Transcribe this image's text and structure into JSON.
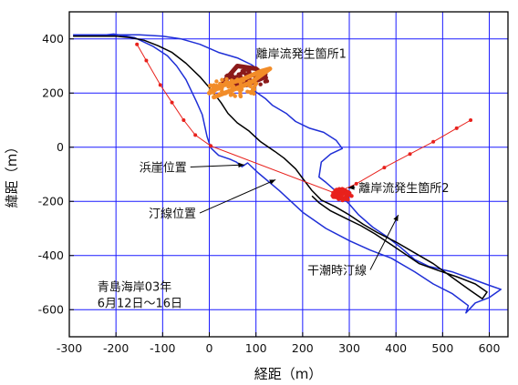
{
  "chart_data": {
    "type": "scatter",
    "title": "",
    "xlabel": "経距（m）",
    "ylabel": "緯距（m）",
    "xlim": [
      -300,
      640
    ],
    "ylim": [
      -700,
      500
    ],
    "x_ticks": [
      -300,
      -200,
      -100,
      0,
      100,
      200,
      300,
      400,
      500,
      600
    ],
    "y_ticks": [
      400,
      200,
      0,
      -200,
      -400,
      -600
    ],
    "grid": true,
    "colors": {
      "grid": "#1a1aff",
      "cliff": "#1f2fd6",
      "shoreline": "#000000",
      "transect": "#e8211c",
      "rip1_a": "#8b1a1a",
      "rip1_b": "#f28c28",
      "rip2": "#e8211c"
    },
    "series": [
      {
        "key": "cliff",
        "kind": "line",
        "points": [
          [
            -292,
            415
          ],
          [
            -220,
            415
          ],
          [
            -205,
            418
          ],
          [
            -160,
            405
          ],
          [
            -120,
            372
          ],
          [
            -90,
            338
          ],
          [
            -70,
            300
          ],
          [
            -50,
            250
          ],
          [
            -28,
            170
          ],
          [
            -15,
            120
          ],
          [
            -5,
            40
          ],
          [
            3,
            -2
          ],
          [
            20,
            -30
          ],
          [
            45,
            -45
          ],
          [
            58,
            -55
          ],
          [
            70,
            -72
          ],
          [
            82,
            -58
          ],
          [
            105,
            -95
          ],
          [
            150,
            -160
          ],
          [
            200,
            -240
          ],
          [
            250,
            -300
          ],
          [
            300,
            -345
          ],
          [
            345,
            -380
          ],
          [
            390,
            -410
          ],
          [
            440,
            -460
          ],
          [
            480,
            -505
          ],
          [
            520,
            -540
          ],
          [
            555,
            -585
          ],
          [
            550,
            -612
          ],
          [
            570,
            -575
          ],
          [
            600,
            -555
          ],
          [
            625,
            -525
          ],
          [
            600,
            -510
          ],
          [
            560,
            -485
          ],
          [
            520,
            -460
          ],
          [
            470,
            -440
          ],
          [
            440,
            -415
          ],
          [
            410,
            -370
          ],
          [
            380,
            -330
          ],
          [
            350,
            -295
          ],
          [
            320,
            -250
          ],
          [
            300,
            -210
          ],
          [
            270,
            -160
          ],
          [
            250,
            -130
          ],
          [
            235,
            -110
          ],
          [
            240,
            -55
          ],
          [
            260,
            -25
          ],
          [
            285,
            -5
          ],
          [
            272,
            25
          ],
          [
            245,
            55
          ],
          [
            215,
            70
          ],
          [
            185,
            95
          ],
          [
            165,
            125
          ],
          [
            135,
            155
          ],
          [
            120,
            180
          ],
          [
            95,
            210
          ],
          [
            100,
            240
          ],
          [
            115,
            275
          ],
          [
            90,
            305
          ],
          [
            60,
            330
          ],
          [
            20,
            350
          ],
          [
            -20,
            380
          ],
          [
            -60,
            400
          ],
          [
            -100,
            410
          ],
          [
            -150,
            415
          ],
          [
            -292,
            415
          ]
        ]
      },
      {
        "key": "shoreline",
        "kind": "line",
        "points": [
          [
            -292,
            410
          ],
          [
            -200,
            410
          ],
          [
            -170,
            405
          ],
          [
            -140,
            395
          ],
          [
            -110,
            375
          ],
          [
            -80,
            350
          ],
          [
            -50,
            310
          ],
          [
            -20,
            260
          ],
          [
            5,
            210
          ],
          [
            25,
            165
          ],
          [
            40,
            125
          ],
          [
            60,
            90
          ],
          [
            85,
            60
          ],
          [
            110,
            20
          ],
          [
            140,
            -15
          ],
          [
            160,
            -40
          ],
          [
            185,
            -80
          ],
          [
            200,
            -115
          ],
          [
            220,
            -160
          ],
          [
            240,
            -195
          ],
          [
            270,
            -220
          ],
          [
            300,
            -250
          ],
          [
            330,
            -285
          ],
          [
            360,
            -315
          ],
          [
            400,
            -350
          ],
          [
            440,
            -390
          ],
          [
            480,
            -430
          ],
          [
            520,
            -480
          ],
          [
            560,
            -530
          ],
          [
            585,
            -560
          ],
          [
            595,
            -535
          ],
          [
            570,
            -505
          ],
          [
            530,
            -478
          ],
          [
            490,
            -455
          ],
          [
            450,
            -430
          ],
          [
            420,
            -395
          ],
          [
            390,
            -360
          ],
          [
            355,
            -320
          ],
          [
            325,
            -290
          ],
          [
            295,
            -265
          ],
          [
            260,
            -235
          ],
          [
            235,
            -205
          ],
          [
            220,
            -180
          ]
        ]
      },
      {
        "key": "transect",
        "kind": "line_markers",
        "points": [
          [
            -155,
            380
          ],
          [
            -135,
            320
          ],
          [
            -105,
            230
          ],
          [
            -80,
            165
          ],
          [
            -55,
            100
          ],
          [
            -30,
            45
          ],
          [
            3,
            5
          ],
          [
            270,
            -170
          ],
          [
            315,
            -135
          ],
          [
            375,
            -75
          ],
          [
            430,
            -25
          ],
          [
            480,
            20
          ],
          [
            530,
            70
          ],
          [
            560,
            100
          ]
        ]
      },
      {
        "key": "rip1_a",
        "kind": "cluster",
        "cx": 80,
        "cy": 255,
        "rx": 48,
        "ry": 30,
        "count": 70,
        "points": [
          [
            30,
            240
          ],
          [
            60,
            300
          ],
          [
            100,
            290
          ],
          [
            120,
            260
          ],
          [
            80,
            230
          ],
          [
            50,
            260
          ]
        ]
      },
      {
        "key": "rip1_b",
        "kind": "cluster",
        "cx": 55,
        "cy": 220,
        "rx": 55,
        "ry": 35,
        "count": 70,
        "points": [
          [
            0,
            200
          ],
          [
            30,
            230
          ],
          [
            70,
            250
          ],
          [
            110,
            280
          ],
          [
            130,
            290
          ],
          [
            90,
            240
          ],
          [
            40,
            205
          ],
          [
            10,
            185
          ]
        ]
      },
      {
        "key": "rip2",
        "kind": "cluster",
        "cx": 285,
        "cy": -175,
        "rx": 22,
        "ry": 22,
        "count": 45,
        "points": [
          [
            270,
            -170
          ],
          [
            285,
            -155
          ],
          [
            300,
            -170
          ],
          [
            290,
            -190
          ],
          [
            275,
            -185
          ]
        ]
      }
    ],
    "annotations": [
      {
        "text": "離岸流発生箇所1",
        "tx": 100,
        "ty": 330,
        "ax": 100,
        "ay": 330,
        "arrow": false
      },
      {
        "text": "離岸流発生箇所2",
        "tx": 320,
        "ty": -165,
        "ax": 298,
        "ay": -150,
        "arrow": true
      },
      {
        "text": "浜崖位置",
        "tx": -150,
        "ty": -90,
        "ax": 75,
        "ay": -65,
        "arrow": true
      },
      {
        "text": "汀線位置",
        "tx": -130,
        "ty": -260,
        "ax": 142,
        "ay": -120,
        "arrow": true
      },
      {
        "text": "干潮時汀線",
        "tx": 210,
        "ty": -470,
        "ax": 405,
        "ay": -250,
        "arrow": true
      },
      {
        "text": "青島海岸03年",
        "tx": -240,
        "ty": -530,
        "arrow": false
      },
      {
        "text": "6月12日～16日",
        "tx": -240,
        "ty": -590,
        "arrow": false
      }
    ]
  }
}
